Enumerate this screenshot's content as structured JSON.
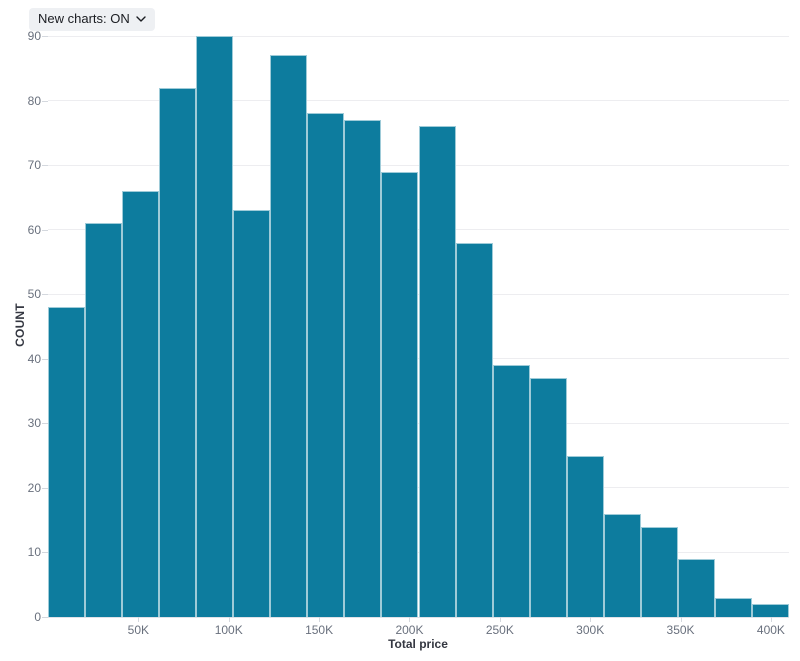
{
  "controls": {
    "new_charts_label": "New charts: ON"
  },
  "colors": {
    "bar_fill": "#0d7c9e",
    "bar_stroke": "#9ecbd8",
    "grid": "#ededf0",
    "axis_line": "#dfe2e8",
    "tick_mark": "#d4d8de",
    "tick_label": "#69707d",
    "axis_title": "#343741",
    "control_bg": "#eef0f3",
    "control_text": "#1a1c21"
  },
  "chart_data": {
    "type": "bar",
    "subtype": "histogram",
    "title": "",
    "xlabel": "Total price",
    "ylabel": "COUNT",
    "values": [
      48,
      61,
      66,
      82,
      90,
      63,
      87,
      78,
      77,
      69,
      76,
      58,
      39,
      37,
      25,
      16,
      14,
      9,
      3,
      2
    ],
    "bin_width": 20000,
    "bin_start": 0,
    "num_bins": 20,
    "y_ticks": [
      0,
      10,
      20,
      30,
      40,
      50,
      60,
      70,
      80,
      90
    ],
    "x_ticks": [
      {
        "value": 50000,
        "label": "50K"
      },
      {
        "value": 100000,
        "label": "100K"
      },
      {
        "value": 150000,
        "label": "150K"
      },
      {
        "value": 200000,
        "label": "200K"
      },
      {
        "value": 250000,
        "label": "250K"
      },
      {
        "value": 300000,
        "label": "300K"
      },
      {
        "value": 350000,
        "label": "350K"
      },
      {
        "value": 400000,
        "label": "400K"
      }
    ],
    "ylim": [
      0,
      90
    ],
    "xlim": [
      0,
      410000
    ],
    "grid": "horizontal",
    "legend": "none"
  }
}
